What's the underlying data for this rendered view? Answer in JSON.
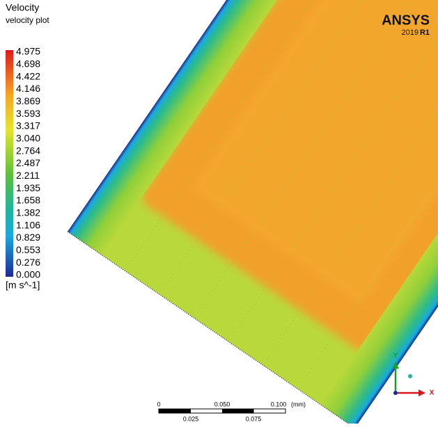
{
  "legend": {
    "title": "Velocity",
    "subtitle": "velocity plot",
    "ticks": [
      "4.975",
      "4.698",
      "4.422",
      "4.146",
      "3.869",
      "3.593",
      "3.317",
      "3.040",
      "2.764",
      "2.487",
      "2.211",
      "1.935",
      "1.658",
      "1.382",
      "1.106",
      "0.829",
      "0.553",
      "0.276",
      "0.000"
    ],
    "unit": "[m s^-1]"
  },
  "logo": {
    "brand": "ANSYS",
    "version": "2019",
    "release": "R1"
  },
  "scale_bar": {
    "top_labels": [
      "0",
      "0.050",
      "0.100"
    ],
    "unit": "(mm)",
    "bottom_labels": [
      "0.025",
      "0.075"
    ]
  },
  "axes": {
    "y": "Y",
    "x": "X"
  }
}
